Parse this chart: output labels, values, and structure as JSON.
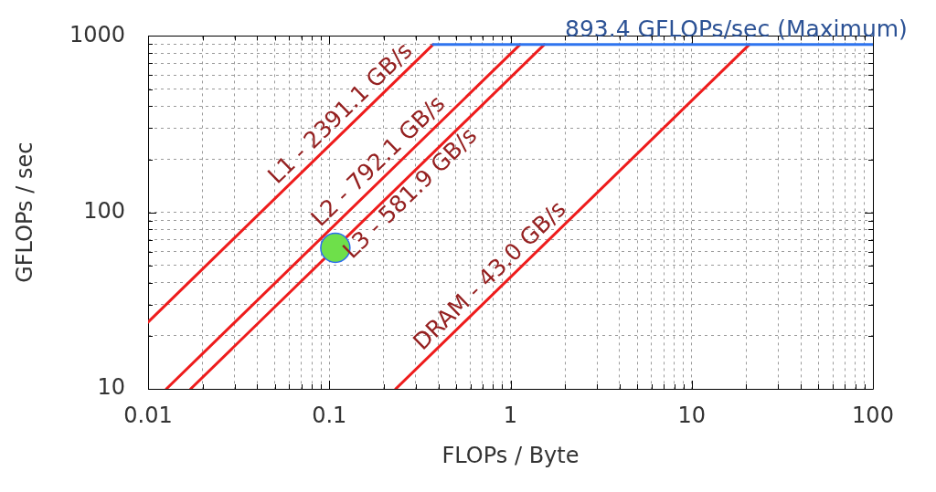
{
  "chart_data": {
    "type": "line",
    "xlabel": "FLOPs / Byte",
    "ylabel": "GFLOPs / sec",
    "log": "xy",
    "grid": true,
    "xlim": [
      0.01,
      100
    ],
    "ylim": [
      10,
      1000
    ],
    "xticks": [
      0.01,
      {
        "value": 0.02,
        "label": null
      },
      {
        "value": 0.03,
        "label": null
      },
      {
        "value": 0.04,
        "label": null
      },
      {
        "value": 0.05,
        "label": null
      },
      {
        "value": 0.06,
        "label": null
      },
      {
        "value": 0.07,
        "label": null
      },
      {
        "value": 0.08,
        "label": null
      },
      {
        "value": 0.09,
        "label": null
      },
      0.1,
      {
        "value": 0.2,
        "label": null
      },
      {
        "value": 0.3,
        "label": null
      },
      {
        "value": 0.4,
        "label": null
      },
      {
        "value": 0.5,
        "label": null
      },
      {
        "value": 0.6,
        "label": null
      },
      {
        "value": 0.7,
        "label": null
      },
      {
        "value": 0.8,
        "label": null
      },
      {
        "value": 0.9,
        "label": null
      },
      1,
      {
        "value": 2,
        "label": null
      },
      {
        "value": 3,
        "label": null
      },
      {
        "value": 4,
        "label": null
      },
      {
        "value": 5,
        "label": null
      },
      {
        "value": 6,
        "label": null
      },
      {
        "value": 7,
        "label": null
      },
      {
        "value": 8,
        "label": null
      },
      {
        "value": 9,
        "label": null
      },
      10,
      {
        "value": 20,
        "label": null
      },
      {
        "value": 30,
        "label": null
      },
      {
        "value": 40,
        "label": null
      },
      {
        "value": 50,
        "label": null
      },
      {
        "value": 60,
        "label": null
      },
      {
        "value": 70,
        "label": null
      },
      {
        "value": 80,
        "label": null
      },
      {
        "value": 90,
        "label": null
      },
      100
    ],
    "yticks": [
      10,
      {
        "value": 20,
        "label": null
      },
      {
        "value": 30,
        "label": null
      },
      {
        "value": 40,
        "label": null
      },
      {
        "value": 50,
        "label": null
      },
      {
        "value": 60,
        "label": null
      },
      {
        "value": 70,
        "label": null
      },
      {
        "value": 80,
        "label": null
      },
      {
        "value": 90,
        "label": null
      },
      100,
      {
        "value": 200,
        "label": null
      },
      {
        "value": 300,
        "label": null
      },
      {
        "value": 400,
        "label": null
      },
      {
        "value": 500,
        "label": null
      },
      {
        "value": 600,
        "label": null
      },
      {
        "value": 700,
        "label": null
      },
      {
        "value": 800,
        "label": null
      },
      {
        "value": 900,
        "label": null
      },
      1000
    ],
    "series": [
      {
        "color": "#ee1c1c",
        "x": [
          0.01,
          0.3736
        ],
        "values": [
          23.91,
          893.4
        ]
      },
      {
        "color": "#ee1c1c",
        "x": [
          0.01262,
          1.128
        ],
        "values": [
          10,
          893.4
        ]
      },
      {
        "color": "#ee1c1c",
        "x": [
          0.01719,
          1.535
        ],
        "values": [
          10,
          893.4
        ]
      },
      {
        "color": "#ee1c1c",
        "x": [
          0.2326,
          20.78
        ],
        "values": [
          10,
          893.4
        ]
      },
      {
        "color": "#2f74ee",
        "x": [
          0.3736,
          100
        ],
        "values": [
          893.4,
          893.4
        ]
      },
      {
        "type": "scatter",
        "color": "#6ee04a",
        "marker": "circle",
        "x": [
          0.108
        ],
        "values": [
          63
        ]
      }
    ],
    "annotations": [
      {
        "text": "L1 - 2391.1 GB/s",
        "x": 0.132,
        "y": 315.6
      },
      {
        "text": "L2 - 792.1 GB/s",
        "x": 0.2135,
        "y": 169.1
      },
      {
        "text": "L3 - 581.9 GB/s",
        "x": 0.249,
        "y": 144.9
      },
      {
        "text": "DRAM - 43.0 GB/s",
        "x": 0.881,
        "y": 37.88
      },
      {
        "text": "893.4 GFLOPs/sec (Maximum)",
        "x": 17.6,
        "y": 893.4
      }
    ]
  }
}
